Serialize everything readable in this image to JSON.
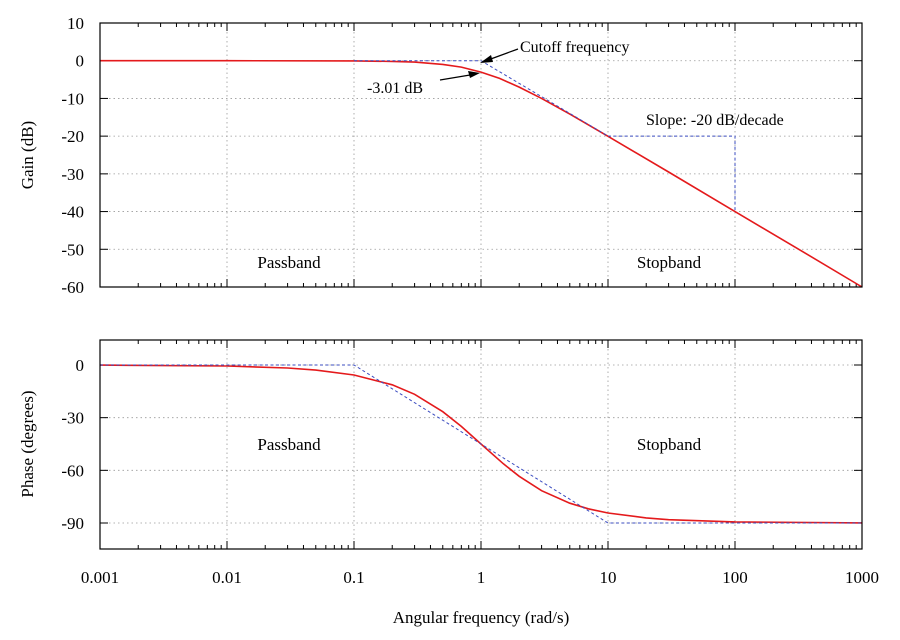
{
  "chart_data": [
    {
      "id": "gain",
      "type": "line",
      "xscale": "log",
      "xlim": [
        0.001,
        1000
      ],
      "ylim": [
        -60,
        10
      ],
      "ylabel": "Gain (dB)",
      "yticks": [
        10,
        0,
        -10,
        -20,
        -30,
        -40,
        -50,
        -60
      ],
      "grid": true,
      "colors": {
        "exact": "#e41a1c",
        "asymptote": "#3b4cc0"
      },
      "series": [
        {
          "style": "solid",
          "color": "#e41a1c",
          "x": [
            0.001,
            0.01,
            0.1,
            0.2,
            0.3,
            0.5,
            0.7,
            1,
            1.4,
            2,
            3,
            5,
            7,
            10,
            30,
            100,
            300,
            1000
          ],
          "y": [
            0,
            0,
            -0.04,
            -0.17,
            -0.37,
            -0.97,
            -1.7,
            -3.01,
            -4.7,
            -7.0,
            -10.0,
            -14.15,
            -17.0,
            -20.04,
            -29.5,
            -40.0,
            -49.5,
            -60.0
          ]
        },
        {
          "style": "dashed",
          "color": "#3b4cc0",
          "x": [
            0.1,
            1,
            10
          ],
          "y": [
            0,
            0,
            -20
          ]
        }
      ],
      "slope_triangle": {
        "x": [
          10,
          100
        ],
        "y": [
          -20,
          -40
        ],
        "color": "#3b4cc0"
      },
      "annotations": [
        {
          "text": "Cutoff frequency",
          "x": 1,
          "y": 0
        },
        {
          "text": "-3.01 dB",
          "x": 1,
          "y": -3.01
        },
        {
          "text": "Slope: -20 dB/decade",
          "x": 12,
          "y": -15
        },
        {
          "text": "Passband",
          "x": 0.01,
          "y": -53
        },
        {
          "text": "Stopband",
          "x": 30,
          "y": -53
        }
      ]
    },
    {
      "id": "phase",
      "type": "line",
      "xscale": "log",
      "xlim": [
        0.001,
        1000
      ],
      "ylim": [
        -100,
        5
      ],
      "ylabel": "Phase (degrees)",
      "xlabel": "Angular frequency (rad/s)",
      "xticks": [
        "0.001",
        "0.01",
        "0.1",
        "1",
        "10",
        "100",
        "1000"
      ],
      "yticks": [
        0,
        -30,
        -60,
        -90
      ],
      "grid": true,
      "series": [
        {
          "style": "solid",
          "color": "#e41a1c",
          "x": [
            0.001,
            0.01,
            0.03,
            0.05,
            0.1,
            0.2,
            0.3,
            0.5,
            0.7,
            1,
            1.5,
            2,
            3,
            5,
            7,
            10,
            20,
            30,
            100,
            1000
          ],
          "y": [
            -0.06,
            -0.57,
            -1.7,
            -2.9,
            -5.7,
            -11.3,
            -16.7,
            -26.6,
            -35.0,
            -45.0,
            -56.3,
            -63.4,
            -71.6,
            -78.7,
            -81.9,
            -84.3,
            -87.1,
            -88.1,
            -89.4,
            -89.94
          ]
        },
        {
          "style": "dashed",
          "color": "#3b4cc0",
          "x": [
            0.001,
            0.1,
            1,
            10,
            1000
          ],
          "y": [
            0,
            0,
            -45,
            -90,
            -90
          ]
        }
      ],
      "annotations": [
        {
          "text": "Passband",
          "x": 0.01,
          "y": -45
        },
        {
          "text": "Stopband",
          "x": 30,
          "y": -45
        }
      ]
    }
  ]
}
